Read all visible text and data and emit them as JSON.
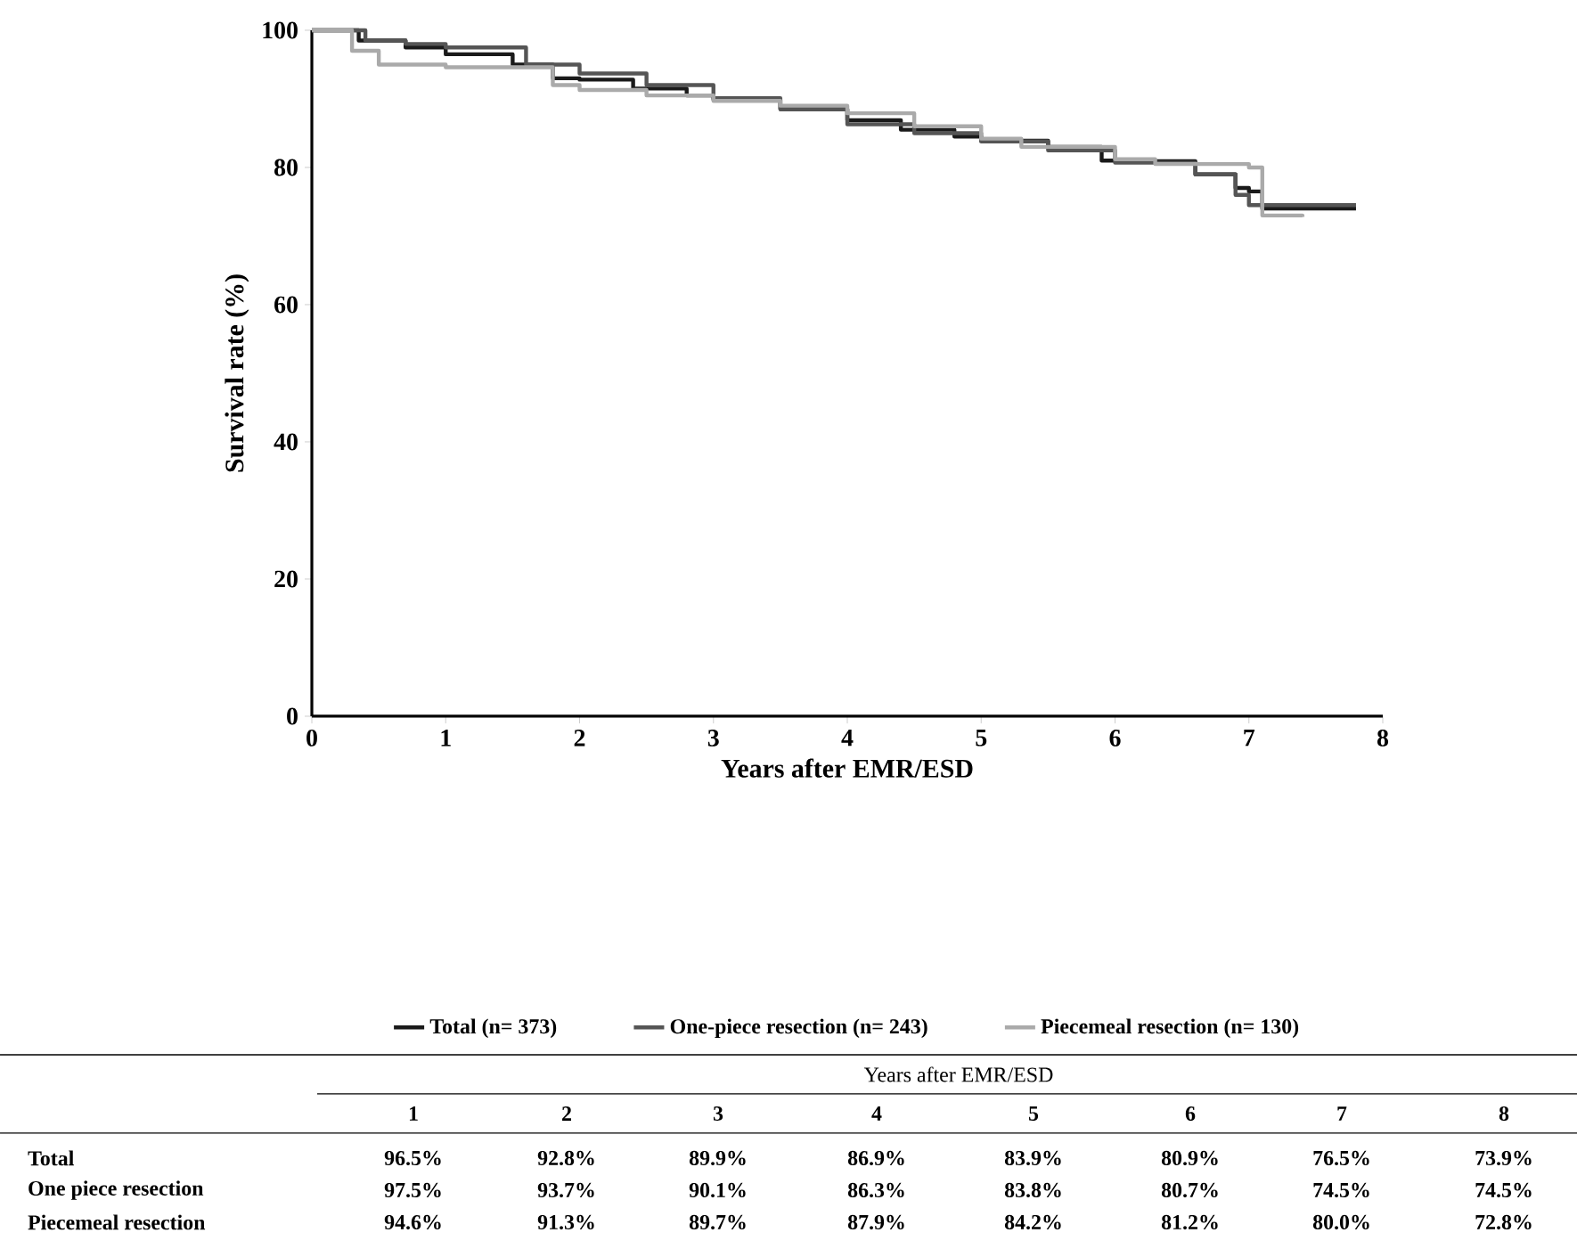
{
  "chart_data": {
    "type": "step",
    "xlabel": "Years after EMR/ESD",
    "ylabel": "Survival rate (%)",
    "xlim": [
      0,
      8
    ],
    "ylim": [
      0,
      100
    ],
    "xticks": [
      0,
      1,
      2,
      3,
      4,
      5,
      6,
      7,
      8
    ],
    "yticks": [
      0,
      20,
      40,
      60,
      80,
      100
    ],
    "legend": "bottom",
    "grid": false,
    "series": [
      {
        "name": "Total (n= 373)",
        "color": "#1a1a1a",
        "x": [
          0,
          0.35,
          0.7,
          1.0,
          1.5,
          1.8,
          2.0,
          2.4,
          2.8,
          3.0,
          3.5,
          4.0,
          4.4,
          4.8,
          5.0,
          5.5,
          5.9,
          6.0,
          6.6,
          6.9,
          7.0,
          7.1,
          7.8
        ],
        "values": [
          100,
          98.5,
          97.5,
          96.5,
          95,
          93,
          92.8,
          91.5,
          90.5,
          89.9,
          88.5,
          86.9,
          85.5,
          84.5,
          83.9,
          83,
          81,
          80.9,
          79,
          77,
          76.5,
          74,
          74
        ]
      },
      {
        "name": "One-piece resection (n= 243)",
        "color": "#555555",
        "x": [
          0,
          0.4,
          0.7,
          1.0,
          1.6,
          2.0,
          2.5,
          3.0,
          3.5,
          4.0,
          4.5,
          5.0,
          5.5,
          6.0,
          6.6,
          6.9,
          7.0,
          7.8
        ],
        "values": [
          100,
          98.5,
          98,
          97.5,
          95,
          93.7,
          92,
          90.1,
          88.5,
          86.3,
          85,
          83.8,
          82.5,
          80.7,
          79,
          76,
          74.5,
          74.5
        ]
      },
      {
        "name": "Piecemeal resection (n= 130)",
        "color": "#aaaaaa",
        "x": [
          0,
          0.3,
          0.5,
          1.0,
          1.8,
          2.0,
          2.5,
          3.0,
          3.5,
          4.0,
          4.5,
          5.0,
          5.3,
          6.0,
          6.3,
          7.0,
          7.1,
          7.4
        ],
        "values": [
          100,
          97,
          95,
          94.6,
          92,
          91.3,
          90.5,
          89.7,
          89,
          87.9,
          86,
          84.2,
          83,
          81.2,
          80.5,
          80.0,
          73,
          72.8
        ]
      }
    ],
    "annotations": [
      "Years after EMR/ESD",
      "1",
      "2",
      "3",
      "4",
      "5",
      "6",
      "7",
      "8",
      "Total",
      "96.5%",
      "92.8%",
      "89.9%",
      "86.9%",
      "83.9%",
      "80.9%",
      "76.5%",
      "73.9%",
      "One piece resection",
      "97.5%",
      "93.7%",
      "90.1%",
      "86.3%",
      "83.8%",
      "80.7%",
      "74.5%",
      "74.5%",
      "Piecemeal resection",
      "94.6%",
      "91.3%",
      "89.7%",
      "87.9%",
      "84.2%",
      "81.2%",
      "80.0%",
      "72.8%"
    ]
  }
}
